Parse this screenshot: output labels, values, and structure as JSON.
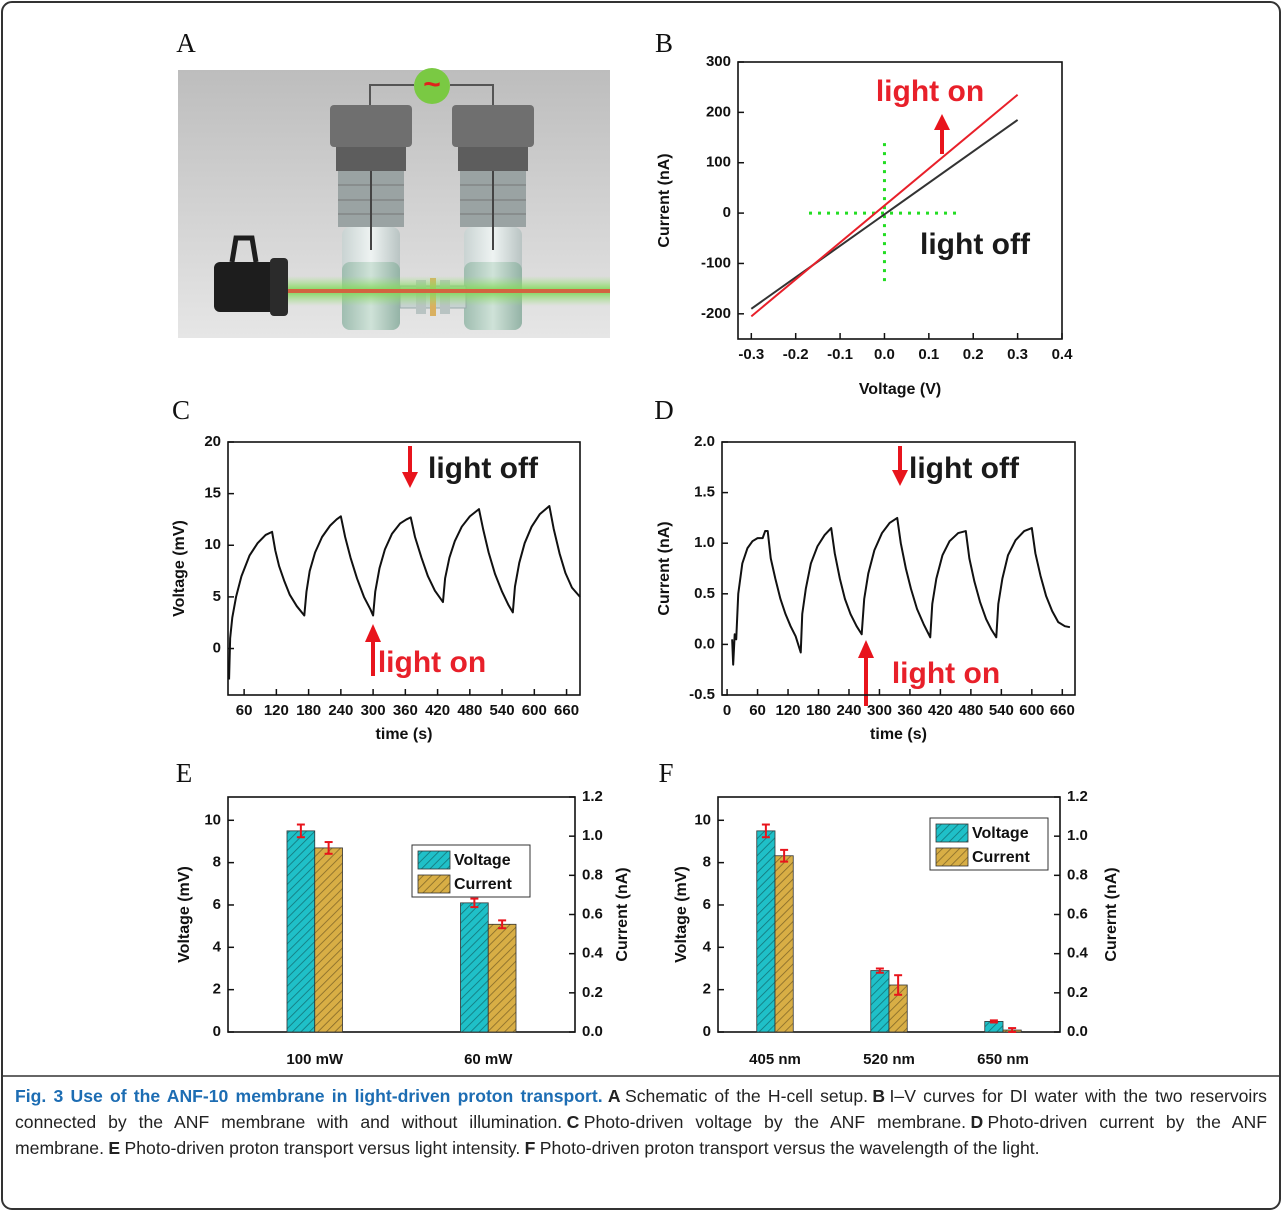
{
  "schematic": {
    "label": "A",
    "source_symbol": "~"
  },
  "chart_data": [
    {
      "type": "line",
      "panel": "B",
      "xlabel": "Voltage (V)",
      "ylabel": "Current (nA)",
      "x": [
        -0.3,
        0.3
      ],
      "series": [
        {
          "color": "#333333",
          "values": [
            -190,
            185
          ]
        },
        {
          "color": "#e8202a",
          "values": [
            -205,
            235
          ]
        }
      ],
      "xlim": [
        -0.33,
        0.4
      ],
      "ylim": [
        -250,
        300
      ],
      "xticks": [
        -0.3,
        -0.2,
        -0.1,
        {
          "value": 0,
          "label": "0.0"
        },
        0.1,
        0.2,
        0.3,
        0.4
      ],
      "yticks": [
        -200,
        -100,
        0,
        100,
        200,
        300
      ],
      "guides": [
        {
          "x": [
            0,
            0
          ],
          "y": [
            -135,
            140
          ]
        },
        {
          "x": [
            -0.17,
            0.17
          ],
          "y": [
            0,
            0
          ]
        }
      ],
      "guide_color": "#22dd22",
      "annotations": [
        {
          "text": "light on",
          "color": "#e8202a"
        },
        {
          "text": "light off",
          "color": "#1a1a1a"
        }
      ]
    },
    {
      "type": "line",
      "panel": "C",
      "xlabel": "time (s)",
      "ylabel": "Voltage (mV)",
      "x": [
        32,
        34,
        38,
        45,
        55,
        70,
        85,
        100,
        112,
        118,
        125,
        135,
        145,
        158,
        172,
        176,
        182,
        192,
        205,
        220,
        232,
        240,
        248,
        258,
        270,
        283,
        295,
        300,
        304,
        312,
        322,
        335,
        350,
        362,
        370,
        378,
        390,
        402,
        415,
        430,
        434,
        442,
        452,
        465,
        480,
        497,
        505,
        515,
        527,
        540,
        552,
        560,
        564,
        572,
        582,
        595,
        610,
        628,
        636,
        647,
        658,
        670,
        685
      ],
      "series": [
        {
          "color": "#111111",
          "values": [
            -3,
            1,
            3,
            5,
            7,
            9,
            10.2,
            11,
            11.3,
            9.5,
            8,
            6.5,
            5.2,
            4.1,
            3.2,
            5.5,
            7.5,
            9.3,
            10.8,
            11.9,
            12.5,
            12.8,
            10.8,
            8.8,
            6.8,
            5,
            3.8,
            3.2,
            5.5,
            7.8,
            9.6,
            11.1,
            12.1,
            12.5,
            12.7,
            10.8,
            8.8,
            7,
            5.6,
            4.5,
            6.8,
            8.8,
            10.4,
            11.8,
            12.8,
            13.5,
            11.5,
            9.3,
            7.2,
            5.5,
            4.2,
            3.5,
            6,
            8.3,
            10.2,
            11.8,
            13,
            13.8,
            11.6,
            9.2,
            7.3,
            5.9,
            5
          ]
        }
      ],
      "xlim": [
        30,
        685
      ],
      "ylim": [
        -4.5,
        20
      ],
      "xticks": [
        60,
        120,
        180,
        240,
        300,
        360,
        420,
        480,
        540,
        600,
        660
      ],
      "yticks": [
        0,
        5,
        10,
        15,
        20
      ],
      "annotations": [
        {
          "text": "light off",
          "color": "#1a1a1a"
        },
        {
          "text": "light on",
          "color": "#e8202a"
        }
      ]
    },
    {
      "type": "line",
      "panel": "D",
      "xlabel": "time (s)",
      "ylabel": "Current (nA)",
      "x": [
        10,
        12,
        15,
        18,
        22,
        30,
        40,
        50,
        60,
        70,
        75,
        80,
        86,
        95,
        105,
        115,
        125,
        135,
        145,
        148,
        155,
        165,
        178,
        192,
        205,
        212,
        222,
        232,
        243,
        255,
        265,
        270,
        278,
        290,
        305,
        320,
        335,
        342,
        352,
        362,
        374,
        387,
        400,
        404,
        412,
        424,
        438,
        455,
        470,
        477,
        487,
        498,
        510,
        520,
        530,
        534,
        542,
        553,
        568,
        585,
        600,
        607,
        617,
        628,
        640,
        652,
        665,
        675
      ],
      "series": [
        {
          "color": "#111111",
          "values": [
            0.05,
            -0.2,
            0.1,
            0.05,
            0.5,
            0.8,
            0.95,
            1.02,
            1.05,
            1.05,
            1.12,
            1.12,
            0.85,
            0.65,
            0.45,
            0.3,
            0.18,
            0.08,
            -0.08,
            0.3,
            0.55,
            0.8,
            0.97,
            1.08,
            1.15,
            0.9,
            0.65,
            0.45,
            0.3,
            0.18,
            0.1,
            0.45,
            0.7,
            0.93,
            1.1,
            1.2,
            1.25,
            1.0,
            0.75,
            0.55,
            0.35,
            0.2,
            0.07,
            0.4,
            0.65,
            0.88,
            1.02,
            1.1,
            1.12,
            0.85,
            0.62,
            0.42,
            0.25,
            0.15,
            0.07,
            0.4,
            0.65,
            0.88,
            1.03,
            1.12,
            1.15,
            0.9,
            0.68,
            0.48,
            0.33,
            0.22,
            0.18,
            0.17
          ]
        }
      ],
      "xlim": [
        -10,
        685
      ],
      "ylim": [
        -0.5,
        2
      ],
      "xticks": [
        0,
        60,
        120,
        180,
        240,
        300,
        360,
        420,
        480,
        540,
        600,
        660
      ],
      "yticks": [
        -0.5,
        {
          "value": 0,
          "label": "0.0"
        },
        0.5,
        {
          "value": 1,
          "label": "1.0"
        },
        1.5,
        {
          "value": 2,
          "label": "2.0"
        }
      ],
      "annotations": [
        {
          "text": "light off",
          "color": "#1a1a1a"
        },
        {
          "text": "light on",
          "color": "#e8202a"
        }
      ]
    },
    {
      "type": "bar",
      "panel": "E",
      "ylabel": "Voltage (mV)",
      "y2label": "Current (nA)",
      "categories": [
        "100 mW",
        "60 mW"
      ],
      "series": [
        {
          "name": "Voltage",
          "color": "#1fc0c8",
          "values": [
            9.5,
            6.1
          ],
          "errors": [
            0.3,
            0.2
          ]
        },
        {
          "name": "Current",
          "color": "#d8ae45",
          "axis": "y2",
          "values": [
            0.94,
            0.55
          ],
          "errors": [
            0.03,
            0.02
          ]
        }
      ],
      "error_color": "#e8141c",
      "legend": "upper right",
      "ylim": [
        0,
        11.1
      ],
      "y2lim": [
        0,
        1.2
      ],
      "yticks": [
        0,
        2,
        4,
        6,
        8,
        10
      ],
      "y2ticks": [
        {
          "value": 0,
          "label": "0.0"
        },
        0.2,
        0.4,
        0.6,
        0.8,
        {
          "value": 1,
          "label": "1.0"
        },
        1.2
      ]
    },
    {
      "type": "bar",
      "panel": "F",
      "ylabel": "Voltage (mV)",
      "y2label": "Curernt (nA)",
      "categories": [
        "405 nm",
        "520 nm",
        "650 nm"
      ],
      "series": [
        {
          "name": "Voltage",
          "color": "#1fc0c8",
          "values": [
            9.5,
            2.9,
            0.5
          ],
          "errors": [
            0.3,
            0.1,
            0.05
          ]
        },
        {
          "name": "Current",
          "color": "#d8ae45",
          "axis": "y2",
          "values": [
            0.9,
            0.24,
            0.01
          ],
          "errors": [
            0.03,
            0.05,
            0.01
          ]
        }
      ],
      "error_color": "#e8141c",
      "legend": "upper right",
      "ylim": [
        0,
        11.1
      ],
      "y2lim": [
        0,
        1.2
      ],
      "yticks": [
        0,
        2,
        4,
        6,
        8,
        10
      ],
      "y2ticks": [
        {
          "value": 0,
          "label": "0.0"
        },
        0.2,
        0.4,
        0.6,
        0.8,
        {
          "value": 1,
          "label": "1.0"
        },
        1.2
      ]
    }
  ],
  "caption": {
    "title": "Fig. 3 Use of the ANF-10 membrane in light-driven proton transport.",
    "parts": [
      {
        "label": "A",
        "text": "Schematic of the H-cell setup."
      },
      {
        "label": "B",
        "text": "I–V curves for DI water with the two reservoirs connected by the ANF membrane with and without illumination."
      },
      {
        "label": "C",
        "text": "Photo-driven voltage by the ANF membrane."
      },
      {
        "label": "D",
        "text": "Photo-driven current by the ANF membrane."
      },
      {
        "label": "E",
        "text": "Photo-driven proton transport versus light intensity."
      },
      {
        "label": "F",
        "text": "Photo-driven proton transport versus the wavelength of the light."
      }
    ]
  }
}
